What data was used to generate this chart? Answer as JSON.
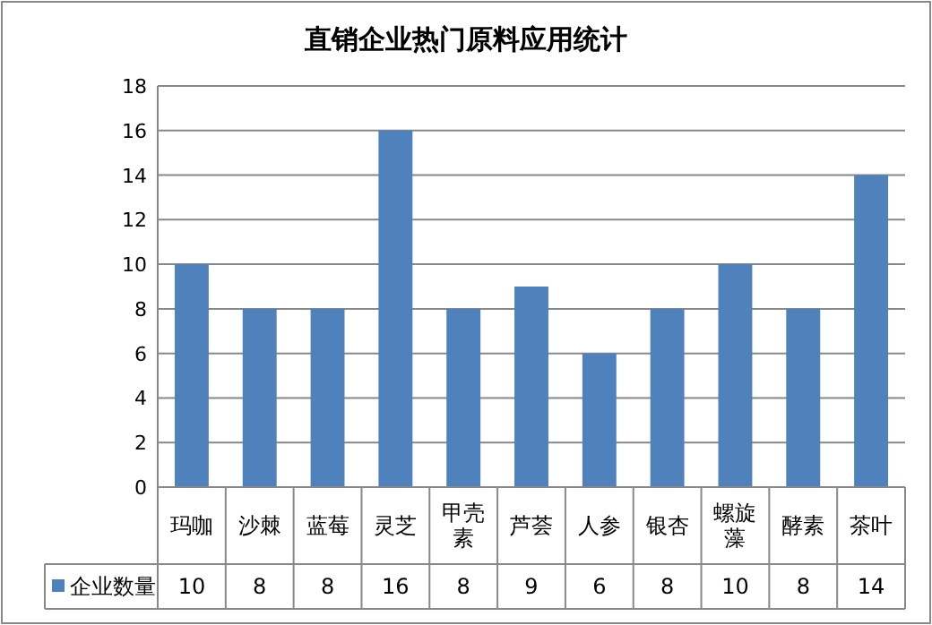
{
  "chart_data": {
    "type": "bar",
    "title": "直销企业热门原料应用统计",
    "categories": [
      "玛咖",
      "沙棘",
      "蓝莓",
      "灵芝",
      "甲壳素",
      "芦荟",
      "人参",
      "银杏",
      "螺旋藻",
      "酵素",
      "茶叶"
    ],
    "series": [
      {
        "name": "企业数量",
        "color": "#4f81bd",
        "values": [
          10,
          8,
          8,
          16,
          8,
          9,
          6,
          8,
          10,
          8,
          14
        ]
      }
    ],
    "ylim": [
      0,
      18
    ],
    "yticks": [
      0,
      2,
      4,
      6,
      8,
      10,
      12,
      14,
      16,
      18
    ],
    "grid": "y",
    "legend": "bottom left",
    "data_labels": true
  }
}
